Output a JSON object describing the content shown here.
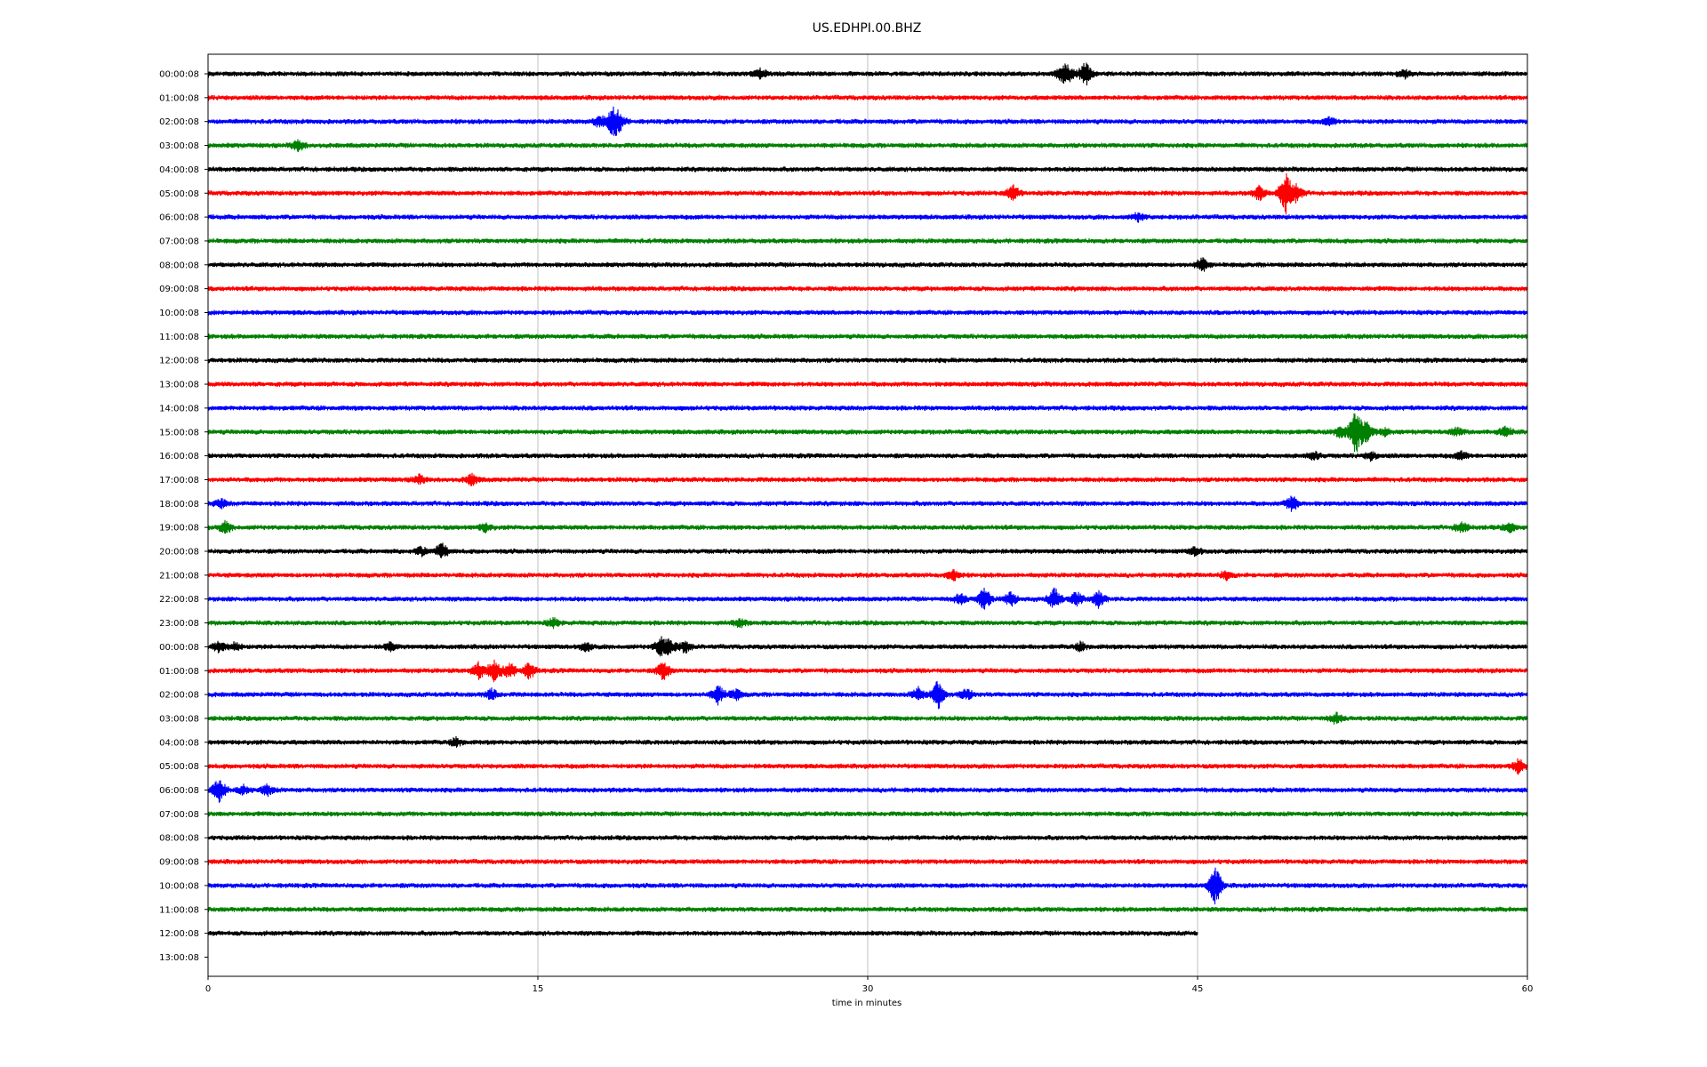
{
  "chart_data": {
    "type": "line",
    "title": "US.EDHPI.00.BHZ",
    "xlabel": "time in minutes",
    "ylabel": "",
    "xlim": [
      0,
      60
    ],
    "xticks": [
      0,
      15,
      30,
      45,
      60
    ],
    "xtick_labels": [
      "0",
      "15",
      "30",
      "45",
      "60"
    ],
    "grid": "vertical gridlines at each x tick",
    "trace_colors": [
      "#000000",
      "#ff0000",
      "#0000ff",
      "#008000"
    ],
    "row_labels": [
      "00:00:08",
      "01:00:08",
      "02:00:08",
      "03:00:08",
      "04:00:08",
      "05:00:08",
      "06:00:08",
      "07:00:08",
      "08:00:08",
      "09:00:08",
      "10:00:08",
      "11:00:08",
      "12:00:08",
      "13:00:08",
      "14:00:08",
      "15:00:08",
      "16:00:08",
      "17:00:08",
      "18:00:08",
      "19:00:08",
      "20:00:08",
      "21:00:08",
      "22:00:08",
      "23:00:08",
      "00:00:08",
      "01:00:08",
      "02:00:08",
      "03:00:08",
      "04:00:08",
      "05:00:08",
      "06:00:08",
      "07:00:08",
      "08:00:08",
      "09:00:08",
      "10:00:08",
      "11:00:08",
      "12:00:08",
      "13:00:08"
    ],
    "trace_end_minutes": [
      60,
      60,
      60,
      60,
      60,
      60,
      60,
      60,
      60,
      60,
      60,
      60,
      60,
      60,
      60,
      60,
      60,
      60,
      60,
      60,
      60,
      60,
      60,
      60,
      60,
      60,
      60,
      60,
      60,
      60,
      60,
      60,
      60,
      60,
      60,
      60,
      45,
      0
    ],
    "events": [
      {
        "row": 0,
        "minute": 25.1,
        "amp": 0.4
      },
      {
        "row": 0,
        "minute": 38.8,
        "amp": 0.5
      },
      {
        "row": 0,
        "minute": 39.1,
        "amp": 0.6
      },
      {
        "row": 0,
        "minute": 39.9,
        "amp": 0.9
      },
      {
        "row": 0,
        "minute": 54.4,
        "amp": 0.3
      },
      {
        "row": 2,
        "minute": 17.8,
        "amp": 0.4
      },
      {
        "row": 2,
        "minute": 18.4,
        "amp": 1.0
      },
      {
        "row": 2,
        "minute": 18.7,
        "amp": 0.6
      },
      {
        "row": 2,
        "minute": 51.0,
        "amp": 0.3
      },
      {
        "row": 3,
        "minute": 4.1,
        "amp": 0.4
      },
      {
        "row": 5,
        "minute": 36.6,
        "amp": 0.6
      },
      {
        "row": 5,
        "minute": 47.8,
        "amp": 0.5
      },
      {
        "row": 5,
        "minute": 49.0,
        "amp": 1.6
      },
      {
        "row": 5,
        "minute": 49.5,
        "amp": 0.6
      },
      {
        "row": 6,
        "minute": 42.3,
        "amp": 0.3
      },
      {
        "row": 8,
        "minute": 45.2,
        "amp": 0.5
      },
      {
        "row": 15,
        "minute": 51.5,
        "amp": 0.5
      },
      {
        "row": 15,
        "minute": 52.2,
        "amp": 1.8
      },
      {
        "row": 15,
        "minute": 52.7,
        "amp": 0.7
      },
      {
        "row": 15,
        "minute": 53.5,
        "amp": 0.3
      },
      {
        "row": 15,
        "minute": 56.8,
        "amp": 0.3
      },
      {
        "row": 15,
        "minute": 59.0,
        "amp": 0.4
      },
      {
        "row": 16,
        "minute": 50.3,
        "amp": 0.3
      },
      {
        "row": 16,
        "minute": 52.9,
        "amp": 0.3
      },
      {
        "row": 16,
        "minute": 57.0,
        "amp": 0.3
      },
      {
        "row": 17,
        "minute": 9.6,
        "amp": 0.3
      },
      {
        "row": 17,
        "minute": 12.0,
        "amp": 0.4
      },
      {
        "row": 18,
        "minute": 0.6,
        "amp": 0.3
      },
      {
        "row": 18,
        "minute": 49.3,
        "amp": 0.6
      },
      {
        "row": 19,
        "minute": 0.8,
        "amp": 0.4
      },
      {
        "row": 19,
        "minute": 12.6,
        "amp": 0.3
      },
      {
        "row": 19,
        "minute": 57.0,
        "amp": 0.4
      },
      {
        "row": 19,
        "minute": 59.2,
        "amp": 0.3
      },
      {
        "row": 20,
        "minute": 9.7,
        "amp": 0.3
      },
      {
        "row": 20,
        "minute": 10.6,
        "amp": 0.6
      },
      {
        "row": 20,
        "minute": 44.9,
        "amp": 0.3
      },
      {
        "row": 21,
        "minute": 33.9,
        "amp": 0.4
      },
      {
        "row": 21,
        "minute": 46.3,
        "amp": 0.3
      },
      {
        "row": 22,
        "minute": 34.2,
        "amp": 0.4
      },
      {
        "row": 22,
        "minute": 35.3,
        "amp": 0.9
      },
      {
        "row": 22,
        "minute": 36.5,
        "amp": 0.5
      },
      {
        "row": 22,
        "minute": 38.5,
        "amp": 0.8
      },
      {
        "row": 22,
        "minute": 39.5,
        "amp": 0.5
      },
      {
        "row": 22,
        "minute": 40.5,
        "amp": 0.6
      },
      {
        "row": 23,
        "minute": 15.7,
        "amp": 0.3
      },
      {
        "row": 23,
        "minute": 24.2,
        "amp": 0.3
      },
      {
        "row": 24,
        "minute": 0.5,
        "amp": 0.4
      },
      {
        "row": 24,
        "minute": 1.2,
        "amp": 0.3
      },
      {
        "row": 24,
        "minute": 8.3,
        "amp": 0.3
      },
      {
        "row": 24,
        "minute": 17.2,
        "amp": 0.3
      },
      {
        "row": 24,
        "minute": 20.6,
        "amp": 0.7
      },
      {
        "row": 24,
        "minute": 21.0,
        "amp": 0.5
      },
      {
        "row": 24,
        "minute": 21.7,
        "amp": 0.4
      },
      {
        "row": 24,
        "minute": 39.7,
        "amp": 0.3
      },
      {
        "row": 25,
        "minute": 12.3,
        "amp": 0.6
      },
      {
        "row": 25,
        "minute": 13.0,
        "amp": 0.8
      },
      {
        "row": 25,
        "minute": 13.7,
        "amp": 0.6
      },
      {
        "row": 25,
        "minute": 14.6,
        "amp": 0.6
      },
      {
        "row": 25,
        "minute": 20.7,
        "amp": 0.7
      },
      {
        "row": 26,
        "minute": 12.9,
        "amp": 0.4
      },
      {
        "row": 26,
        "minute": 23.2,
        "amp": 0.7
      },
      {
        "row": 26,
        "minute": 24.0,
        "amp": 0.4
      },
      {
        "row": 26,
        "minute": 32.3,
        "amp": 0.5
      },
      {
        "row": 26,
        "minute": 33.2,
        "amp": 1.1
      },
      {
        "row": 26,
        "minute": 34.5,
        "amp": 0.4
      },
      {
        "row": 27,
        "minute": 51.3,
        "amp": 0.4
      },
      {
        "row": 28,
        "minute": 11.3,
        "amp": 0.3
      },
      {
        "row": 29,
        "minute": 59.6,
        "amp": 0.6
      },
      {
        "row": 30,
        "minute": 0.5,
        "amp": 0.9
      },
      {
        "row": 30,
        "minute": 1.6,
        "amp": 0.3
      },
      {
        "row": 30,
        "minute": 2.7,
        "amp": 0.4
      },
      {
        "row": 34,
        "minute": 45.8,
        "amp": 1.5
      }
    ]
  }
}
